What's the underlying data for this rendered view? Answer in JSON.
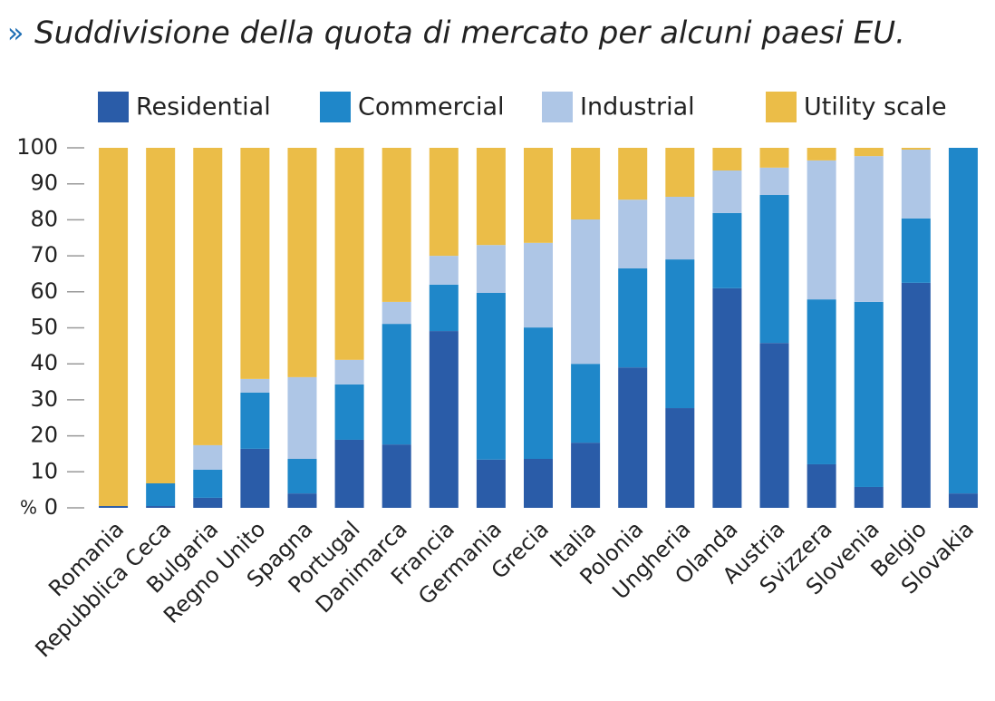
{
  "chart_data": {
    "type": "stacked_bar",
    "title_marker": "»",
    "title": "Suddivisione della quota di mercato per alcuni paesi EU.",
    "y_unit": "%",
    "categories": [
      "Romania",
      "Repubblica Ceca",
      "Bulgaria",
      "Regno Unito",
      "Spagna",
      "Portugal",
      "Danimarca",
      "Francia",
      "Germania",
      "Grecia",
      "Italia",
      "Polonia",
      "Ungheria",
      "Olanda",
      "Austria",
      "Svizzera",
      "Slovenia",
      "Belgio",
      "Slovakia"
    ],
    "series": [
      {
        "name": "Residential",
        "color": "#2a5ca8",
        "values": [
          0.5,
          0.5,
          2.8,
          16.4,
          4.0,
          18.9,
          17.6,
          49.1,
          13.4,
          13.6,
          18.1,
          39.0,
          27.7,
          61.0,
          45.8,
          12.1,
          5.8,
          62.5,
          4.0
        ]
      },
      {
        "name": "Commercial",
        "color": "#1f87c9",
        "values": [
          0,
          6.3,
          7.8,
          15.6,
          9.6,
          15.4,
          33.5,
          12.9,
          46.3,
          36.5,
          21.9,
          27.5,
          41.3,
          20.9,
          41.1,
          45.8,
          51.4,
          17.9,
          96.0
        ]
      },
      {
        "name": "Industrial",
        "color": "#aec6e6",
        "values": [
          0,
          0,
          6.8,
          3.8,
          22.7,
          6.8,
          6.1,
          8.0,
          13.3,
          23.5,
          40.1,
          19.1,
          17.4,
          11.8,
          7.6,
          38.6,
          40.5,
          19.1,
          0
        ]
      },
      {
        "name": "Utility scale",
        "color": "#ebbd48",
        "values": [
          99.5,
          93.2,
          82.6,
          64.2,
          63.7,
          58.9,
          42.8,
          30.0,
          27.0,
          26.4,
          19.9,
          14.4,
          13.6,
          6.3,
          5.5,
          3.5,
          2.3,
          0.5,
          0
        ]
      }
    ],
    "ylim": [
      0,
      100
    ],
    "yticks": [
      0,
      10,
      20,
      30,
      40,
      50,
      60,
      70,
      80,
      90,
      100
    ],
    "grid": false,
    "legend": "top"
  }
}
